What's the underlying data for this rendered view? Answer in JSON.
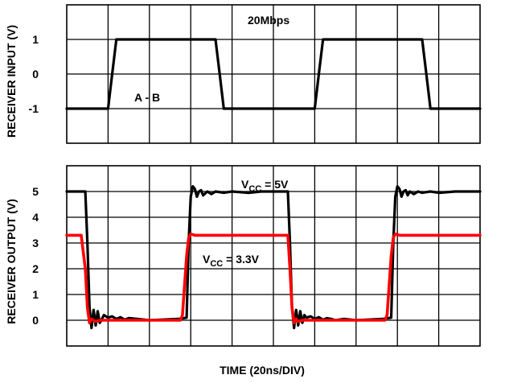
{
  "chart_data": [
    {
      "type": "line",
      "ylabel": "RECEIVER INPUT (V)",
      "xlabel": "",
      "xlim": [
        0,
        200
      ],
      "ylim": [
        -2,
        2
      ],
      "y_ticks": [
        "1",
        "0",
        "-1"
      ],
      "y_tick_values": [
        1,
        0,
        -1
      ],
      "grid": true,
      "annotations": [
        "20Mbps",
        "A - B"
      ],
      "series": [
        {
          "name": "",
          "color": "#000000",
          "x": [
            0,
            20,
            22,
            24,
            72,
            74,
            76,
            120,
            122,
            124,
            172,
            174,
            176,
            200
          ],
          "y": [
            -1,
            -1,
            0,
            1,
            1,
            0,
            -1,
            -1,
            0,
            1,
            1,
            0,
            -1,
            -1
          ]
        }
      ]
    },
    {
      "type": "line",
      "ylabel": "RECEIVER OUTPUT (V)",
      "xlabel": "TIME (20ns/DIV)",
      "xlim": [
        0,
        200
      ],
      "ylim": [
        -1,
        6
      ],
      "y_ticks": [
        "5",
        "4",
        "3",
        "2",
        "1",
        "0"
      ],
      "y_tick_values": [
        5,
        4,
        3,
        2,
        1,
        0
      ],
      "grid": true,
      "annotations": [
        {
          "main": "V",
          "sub": "CC",
          "tail": " = 5V"
        },
        {
          "main": "V",
          "sub": "CC",
          "tail": " = 3.3V"
        }
      ],
      "series": [
        {
          "name": "VCC = 5V",
          "color": "#000000",
          "x": [
            0,
            6,
            9,
            10,
            11,
            12,
            13,
            14,
            15,
            16,
            18,
            20,
            22,
            24,
            26,
            28,
            30,
            34,
            40,
            54,
            58,
            59,
            60,
            61,
            62,
            63,
            64,
            65,
            66,
            68,
            70,
            72,
            76,
            80,
            88,
            94,
            98,
            107,
            108,
            109,
            110,
            111,
            112,
            113,
            114,
            115,
            116,
            118,
            120,
            122,
            124,
            126,
            128,
            130,
            134,
            140,
            153,
            157,
            158,
            159,
            160,
            161,
            162,
            163,
            164,
            165,
            166,
            168,
            170,
            172,
            176,
            180,
            188,
            200
          ],
          "y": [
            5,
            5,
            5,
            3,
            0.5,
            -0.3,
            0.4,
            -0.2,
            0.35,
            -0.1,
            0.2,
            0.1,
            0.15,
            0.05,
            0.12,
            0.02,
            0.08,
            0.05,
            0.0,
            0.05,
            0.1,
            3,
            4.8,
            5.2,
            5.1,
            4.8,
            5.0,
            5.05,
            4.85,
            5.0,
            4.9,
            5.0,
            4.95,
            5.0,
            4.95,
            5.0,
            5.0,
            5,
            3,
            0.5,
            -0.3,
            0.4,
            -0.2,
            0.35,
            -0.1,
            0.2,
            0.1,
            0.15,
            0.05,
            0.12,
            0.02,
            0.08,
            0.05,
            0.0,
            0.05,
            0.0,
            0.05,
            0.1,
            3,
            4.8,
            5.2,
            5.1,
            4.8,
            5.0,
            5.05,
            4.85,
            5.0,
            4.9,
            5.0,
            4.95,
            5.0,
            4.95,
            5.0,
            5.0
          ]
        },
        {
          "name": "VCC = 3.3V",
          "color": "#ff0000",
          "x": [
            0,
            7,
            9,
            10,
            11,
            12,
            14,
            16,
            20,
            30,
            40,
            55,
            56,
            58,
            59,
            60,
            62,
            70,
            80,
            107,
            108,
            109,
            110,
            111,
            112,
            114,
            116,
            120,
            130,
            140,
            154,
            155,
            157,
            158,
            159,
            161,
            170,
            180,
            190,
            200
          ],
          "y": [
            3.3,
            3.3,
            2.0,
            0.5,
            -0.1,
            0.05,
            -0.05,
            0.0,
            0.0,
            0.0,
            0.0,
            0.0,
            0.2,
            2.5,
            3.2,
            3.35,
            3.3,
            3.3,
            3.3,
            3.3,
            2.0,
            0.5,
            -0.1,
            0.05,
            -0.05,
            0.0,
            0.0,
            0.0,
            0.0,
            0.0,
            0.0,
            0.2,
            2.5,
            3.2,
            3.35,
            3.3,
            3.3,
            3.3,
            3.3,
            3.3
          ]
        }
      ]
    }
  ]
}
